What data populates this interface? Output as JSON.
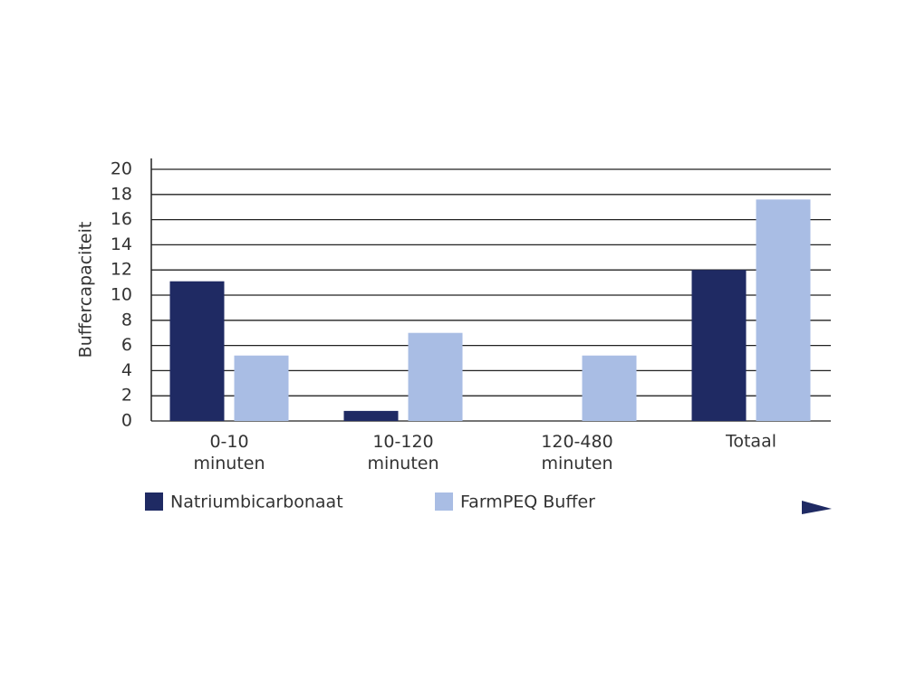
{
  "chart_data": {
    "type": "bar",
    "y_label": "Buffercapaciteit",
    "categories": [
      "0-10\nminuten",
      "10-120\nminuten",
      "120-480\nminuten",
      "Totaal"
    ],
    "series": [
      {
        "name": "Natriumbicarbonaat",
        "color": "#1f2a63",
        "values": [
          11.1,
          0.8,
          null,
          12.0
        ]
      },
      {
        "name": "FarmPEQ Buffer",
        "color": "#a9bde4",
        "values": [
          5.2,
          7.0,
          5.2,
          17.6
        ]
      }
    ],
    "ylim": [
      0,
      20
    ],
    "yticks": [
      0,
      2,
      4,
      6,
      8,
      10,
      12,
      14,
      16,
      18,
      20
    ],
    "grid": true
  }
}
